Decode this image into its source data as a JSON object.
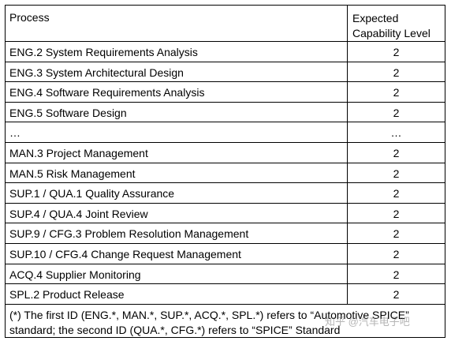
{
  "header": {
    "process": "Process",
    "level_line1": "Expected",
    "level_line2": "Capability Level"
  },
  "rows": [
    {
      "process": "ENG.2 System Requirements Analysis",
      "level": "2"
    },
    {
      "process": "ENG.3 System Architectural Design",
      "level": "2"
    },
    {
      "process": "ENG.4 Software Requirements Analysis",
      "level": "2"
    },
    {
      "process": "ENG.5 Software Design",
      "level": "2"
    },
    {
      "process": "…",
      "level": "…"
    },
    {
      "process": "MAN.3 Project Management",
      "level": "2"
    },
    {
      "process": "MAN.5 Risk Management",
      "level": "2"
    },
    {
      "process": "SUP.1 / QUA.1 Quality Assurance",
      "level": "2"
    },
    {
      "process": "SUP.4 / QUA.4 Joint Review",
      "level": "2"
    },
    {
      "process": "SUP.9 / CFG.3 Problem Resolution Management",
      "level": "2"
    },
    {
      "process": "SUP.10 / CFG.4 Change Request Management",
      "level": "2"
    },
    {
      "process": "ACQ.4 Supplier Monitoring",
      "level": "2"
    },
    {
      "process": "SPL.2 Product Release",
      "level": "2"
    }
  ],
  "footnote": {
    "line1": "(*) The first ID (ENG.*, MAN.*, SUP.*, ACQ.*, SPL.*) refers to “Automotive SPICE”",
    "line2": "standard; the second ID (QUA.*, CFG.*) refers to “SPICE” Standard"
  },
  "watermark": "知乎 @汽车电子吧"
}
